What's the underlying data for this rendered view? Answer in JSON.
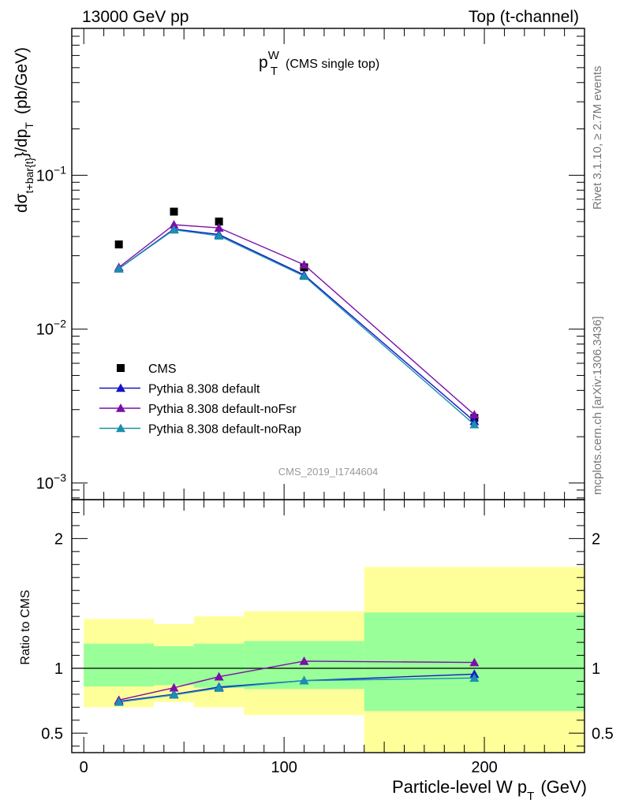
{
  "header": {
    "left": "13000 GeV pp",
    "right": "Top (t-channel)"
  },
  "chart_data": [
    {
      "type": "line",
      "panel": "main",
      "title_main": "p",
      "title_sup": "W",
      "title_sub": "T",
      "title_suffix": "(CMS single top)",
      "ylabel": "dσ_{t+bar{t}}/dp_T (pb/GeV)",
      "ylabel_parts": {
        "d_sigma": "dσ",
        "sigma_sub": "t+bar{t}",
        "mid": "}/dp",
        "mid_sub": "T",
        "unit": "(pb/GeV)"
      },
      "y_scale": "log",
      "ylim": [
        0.00078,
        0.9
      ],
      "xlim": [
        -6,
        250
      ],
      "y_ticks": [
        {
          "value": 0.001,
          "base": "10",
          "exp": "−3"
        },
        {
          "value": 0.01,
          "base": "10",
          "exp": "−2"
        },
        {
          "value": 0.1,
          "base": "10",
          "exp": "−1"
        }
      ],
      "watermark": "CMS_2019_I1744604",
      "legend_position": "lower-left",
      "x": [
        17.5,
        45,
        67.5,
        110,
        195
      ],
      "series": [
        {
          "name": "CMS",
          "marker": "square",
          "color": "#000000",
          "values": [
            0.0355,
            0.058,
            0.05,
            0.0252,
            0.00265
          ]
        },
        {
          "name": "Pythia 8.308 default",
          "marker": "triangle",
          "color": "#1515c8",
          "values": [
            0.0247,
            0.0447,
            0.0412,
            0.0225,
            0.00252
          ]
        },
        {
          "name": "Pythia 8.308 default-noFsr",
          "marker": "triangle",
          "color": "#7b0fa8",
          "values": [
            0.0252,
            0.0477,
            0.0455,
            0.0262,
            0.00278
          ]
        },
        {
          "name": "Pythia 8.308 default-noRap",
          "marker": "triangle",
          "color": "#1a8fb0",
          "values": [
            0.0247,
            0.0442,
            0.0404,
            0.0221,
            0.0024
          ]
        }
      ]
    },
    {
      "type": "line",
      "panel": "ratio",
      "ylabel": "Ratio to CMS",
      "xlabel": "Particle-level W p",
      "xlabel_sub": "T",
      "xlabel_unit": "(GeV)",
      "ylim": [
        0.35,
        2.3
      ],
      "xlim": [
        -6,
        250
      ],
      "y_ticks": [
        0.5,
        1,
        2
      ],
      "y_tick_labels": [
        "0.5",
        "1",
        "2"
      ],
      "x_ticks": [
        0,
        100,
        200
      ],
      "x_tick_labels": [
        "0",
        "100",
        "200"
      ],
      "x": [
        17.5,
        45,
        67.5,
        110,
        195
      ],
      "bands": [
        {
          "x0": 0,
          "x1": 35,
          "green": [
            0.86,
            1.19
          ],
          "yellow": [
            0.7,
            1.38
          ]
        },
        {
          "x0": 35,
          "x1": 55,
          "green": [
            0.87,
            1.17
          ],
          "yellow": [
            0.74,
            1.34
          ]
        },
        {
          "x0": 55,
          "x1": 80,
          "green": [
            0.85,
            1.19
          ],
          "yellow": [
            0.7,
            1.4
          ]
        },
        {
          "x0": 80,
          "x1": 140,
          "green": [
            0.84,
            1.21
          ],
          "yellow": [
            0.64,
            1.44
          ]
        },
        {
          "x0": 140,
          "x1": 250,
          "green": [
            0.67,
            1.43
          ],
          "yellow": [
            0.35,
            1.78
          ]
        }
      ],
      "series": [
        {
          "name": "Pythia 8.308 default",
          "color": "#1515c8",
          "values": [
            0.745,
            0.8,
            0.855,
            0.905,
            0.955
          ]
        },
        {
          "name": "Pythia 8.308 default-noFsr",
          "color": "#7b0fa8",
          "values": [
            0.755,
            0.85,
            0.935,
            1.055,
            1.045
          ]
        },
        {
          "name": "Pythia 8.308 default-noRap",
          "color": "#1a8fb0",
          "values": [
            0.74,
            0.795,
            0.848,
            0.905,
            0.925
          ]
        }
      ]
    }
  ],
  "side_labels": {
    "rivet": "Rivet 3.1.10, ≥ 2.7M events",
    "mcplots": "mcplots.cern.ch [arXiv:1306.3436]"
  }
}
